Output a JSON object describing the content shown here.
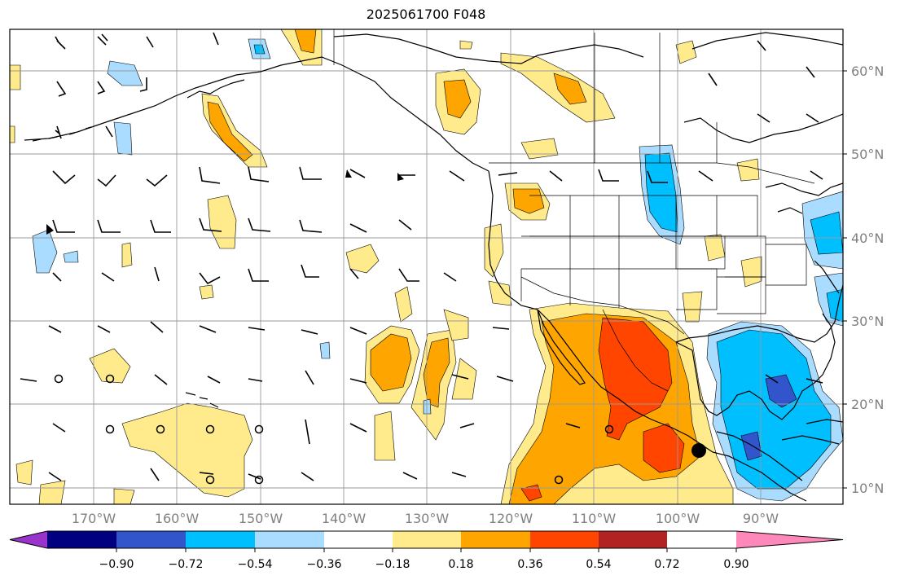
{
  "title": "2025061700 F048",
  "map": {
    "latitude_labels": [
      "60°N",
      "50°N",
      "40°N",
      "30°N",
      "20°N",
      "10°N"
    ],
    "longitude_labels": [
      "170°W",
      "160°W",
      "150°W",
      "140°W",
      "130°W",
      "120°W",
      "110°W",
      "100°W",
      "90°W"
    ],
    "gridlines": true,
    "marker_color": "#000000"
  },
  "colorbar": {
    "ticks": [
      "−0.90",
      "−0.72",
      "−0.54",
      "−0.36",
      "−0.18",
      "0.18",
      "0.36",
      "0.54",
      "0.72",
      "0.90"
    ],
    "colors": [
      "#9933cc",
      "#000080",
      "#3355cc",
      "#00bfff",
      "#aadcff",
      "#ffffff",
      "#ffeb8c",
      "#ffa500",
      "#ff4500",
      "#b22222",
      "#ff88bb"
    ]
  }
}
